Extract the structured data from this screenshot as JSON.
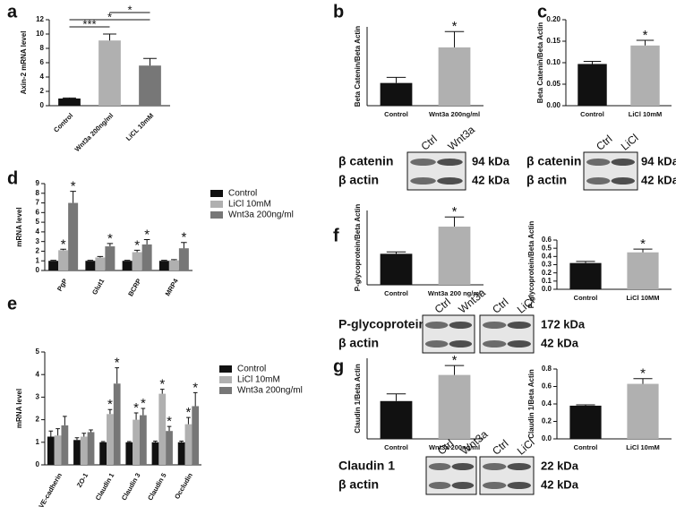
{
  "chart_data": [
    {
      "type": "bar",
      "panel_label": "a",
      "ylabel": "Axin-2 mRNA level",
      "categories": [
        "Control",
        "Wnt3a 200ng/ml",
        "LiCL 10mM"
      ],
      "values": [
        1,
        9.1,
        5.6
      ],
      "errors": [
        0.08,
        0.9,
        1.0
      ],
      "colors": [
        "#111111",
        "#b0b0b0",
        "#777777"
      ],
      "ylim": [
        0,
        12
      ],
      "yticks": [
        0,
        2,
        4,
        6,
        8,
        10,
        12
      ],
      "brackets": [
        {
          "text": "***",
          "from": 0,
          "to": 1
        },
        {
          "text": "*",
          "from": 0,
          "to": 2
        },
        {
          "text": "*",
          "from": 1,
          "to": 2
        }
      ]
    },
    {
      "type": "bar",
      "panel_label": "b",
      "ylabel": "Beta Catenin/Beta Actin",
      "categories": [
        "Control",
        "Wnt3a 200ng/ml"
      ],
      "values": [
        0.72,
        1.85
      ],
      "errors": [
        0.18,
        0.5
      ],
      "colors": [
        "#111111",
        "#b0b0b0"
      ],
      "ylim": [
        0,
        2.5
      ],
      "annotations": [
        {
          "text": "*",
          "index": 1
        }
      ]
    },
    {
      "type": "bar",
      "panel_label": "c",
      "ylabel": "Beta Catenin/Beta Actin",
      "categories": [
        "Control",
        "LiCl 10mM"
      ],
      "values": [
        0.097,
        0.14
      ],
      "errors": [
        0.006,
        0.012
      ],
      "colors": [
        "#111111",
        "#b0b0b0"
      ],
      "ylim": [
        0,
        0.2
      ],
      "yticks": [
        {
          "value": 0,
          "label": "0.00"
        },
        {
          "value": 0.05,
          "label": "0.05"
        },
        {
          "value": 0.1,
          "label": "0.10"
        },
        {
          "value": 0.15,
          "label": "0.15"
        },
        {
          "value": 0.2,
          "label": "0.20"
        }
      ],
      "annotations": [
        {
          "text": "*",
          "index": 1
        }
      ]
    },
    {
      "type": "grouped_bar",
      "panel_label": "d",
      "ylabel": "mRNA level",
      "categories": [
        "PgP",
        "Glut1",
        "BCRP",
        "MRP4"
      ],
      "series": [
        {
          "name": "Control",
          "color": "#111111",
          "values": [
            1,
            1,
            1,
            1
          ],
          "errors": [
            0.05,
            0.05,
            0.05,
            0.05
          ]
        },
        {
          "name": "LiCl 10mM",
          "color": "#b0b0b0",
          "values": [
            2.1,
            1.35,
            1.9,
            1.05
          ],
          "errors": [
            0.1,
            0.1,
            0.2,
            0.08
          ]
        },
        {
          "name": "Wnt3a 200ng/ml",
          "color": "#777777",
          "values": [
            7.0,
            2.5,
            2.7,
            2.3
          ],
          "errors": [
            1.2,
            0.3,
            0.5,
            0.6
          ]
        }
      ],
      "ylim": [
        0,
        9
      ],
      "yticks": [
        0,
        1,
        2,
        3,
        4,
        5,
        6,
        7,
        8,
        9
      ],
      "annotations": [
        {
          "text": "*",
          "series": 1,
          "index": 0
        },
        {
          "text": "*",
          "series": 2,
          "index": 0
        },
        {
          "text": "*",
          "series": 2,
          "index": 1
        },
        {
          "text": "*",
          "series": 1,
          "index": 2
        },
        {
          "text": "*",
          "series": 2,
          "index": 2
        },
        {
          "text": "*",
          "series": 2,
          "index": 3
        }
      ]
    },
    {
      "type": "grouped_bar",
      "panel_label": "e",
      "ylabel": "mRNA level",
      "categories": [
        "VE-cadherin",
        "ZO-1",
        "Claudin 1",
        "Claudin 3",
        "Claudin 5",
        "Occludin"
      ],
      "series": [
        {
          "name": "Control",
          "color": "#111111",
          "values": [
            1.25,
            1.1,
            1.0,
            1.0,
            1.0,
            1.0
          ],
          "errors": [
            0.25,
            0.1,
            0.03,
            0.03,
            0.05,
            0.05
          ]
        },
        {
          "name": "LiCl 10mM",
          "color": "#b0b0b0",
          "values": [
            1.3,
            1.25,
            2.25,
            2.0,
            3.15,
            1.8
          ],
          "errors": [
            0.3,
            0.15,
            0.2,
            0.3,
            0.2,
            0.3
          ]
        },
        {
          "name": "Wnt3a 200ng/ml",
          "color": "#777777",
          "values": [
            1.75,
            1.45,
            3.6,
            2.2,
            1.5,
            2.6
          ],
          "errors": [
            0.4,
            0.1,
            0.7,
            0.3,
            0.2,
            0.6
          ]
        }
      ],
      "ylim": [
        0,
        5
      ],
      "yticks": [
        0,
        1,
        2,
        3,
        4,
        5
      ],
      "annotations": [
        {
          "text": "*",
          "series": 1,
          "index": 2
        },
        {
          "text": "*",
          "series": 2,
          "index": 2
        },
        {
          "text": "*",
          "series": 1,
          "index": 3
        },
        {
          "text": "*",
          "series": 2,
          "index": 3
        },
        {
          "text": "*",
          "series": 1,
          "index": 4
        },
        {
          "text": "*",
          "series": 2,
          "index": 4
        },
        {
          "text": "*",
          "series": 1,
          "index": 5
        },
        {
          "text": "*",
          "series": 2,
          "index": 5
        }
      ]
    },
    {
      "type": "bar",
      "panel_label": "f",
      "ylabel": "P-glycoprotein/Beta Actin",
      "categories": [
        "Control",
        "Wnt3a 200 ng/ml"
      ],
      "values": [
        0.48,
        0.9
      ],
      "errors": [
        0.03,
        0.15
      ],
      "colors": [
        "#111111",
        "#b0b0b0"
      ],
      "ylim": [
        0,
        1.15
      ],
      "annotations": [
        {
          "text": "*",
          "index": 1
        }
      ]
    },
    {
      "type": "bar",
      "ylabel": "P-glycoprotein/Beta Actin",
      "categories": [
        "Control",
        "LiCl 10MM"
      ],
      "values": [
        0.32,
        0.45
      ],
      "errors": [
        0.02,
        0.04
      ],
      "colors": [
        "#111111",
        "#b0b0b0"
      ],
      "ylim": [
        0,
        0.6
      ],
      "yticks": [
        {
          "value": 0,
          "label": "0.0"
        },
        {
          "value": 0.1,
          "label": "0.1"
        },
        {
          "value": 0.2,
          "label": "0.2"
        },
        {
          "value": 0.3,
          "label": "0.3"
        },
        {
          "value": 0.4,
          "label": "0.4"
        },
        {
          "value": 0.5,
          "label": "0.5"
        },
        {
          "value": 0.6,
          "label": "0.6"
        }
      ],
      "annotations": [
        {
          "text": "*",
          "index": 1
        }
      ]
    },
    {
      "type": "bar",
      "panel_label": "g",
      "ylabel": "Claudin 1/Beta Actin",
      "categories": [
        "Control",
        "Wnt3a 200ng/ml"
      ],
      "values": [
        0.68,
        1.15
      ],
      "errors": [
        0.13,
        0.17
      ],
      "colors": [
        "#111111",
        "#b0b0b0"
      ],
      "ylim": [
        0,
        1.45
      ],
      "annotations": [
        {
          "text": "*",
          "index": 1
        }
      ]
    },
    {
      "type": "bar",
      "ylabel": "Claudin 1/Beta Actin",
      "categories": [
        "Control",
        "LiCl 10mM"
      ],
      "values": [
        0.38,
        0.63
      ],
      "errors": [
        0.01,
        0.06
      ],
      "colors": [
        "#111111",
        "#b0b0b0"
      ],
      "ylim": [
        0,
        0.8
      ],
      "yticks": [
        {
          "value": 0,
          "label": "0.0"
        },
        {
          "value": 0.2,
          "label": "0.2"
        },
        {
          "value": 0.4,
          "label": "0.4"
        },
        {
          "value": 0.6,
          "label": "0.6"
        },
        {
          "value": 0.8,
          "label": "0.8"
        }
      ],
      "annotations": [
        {
          "text": "*",
          "index": 1
        }
      ]
    }
  ],
  "blots": [
    {
      "lanes": [
        "Ctrl",
        "Wnt3a"
      ],
      "rows": [
        "β catenin",
        "β actin"
      ],
      "sizes": [
        "94 kDa",
        "42 kDa"
      ]
    },
    {
      "lanes": [
        "Ctrl",
        "LiCl"
      ],
      "rows": [
        "β catenin",
        "β actin"
      ],
      "sizes": [
        "94 kDa",
        "42 kDa"
      ]
    },
    {
      "lanes": [
        "Ctrl",
        "Wnt3a",
        "Ctrl",
        "LiCl"
      ],
      "rows": [
        "P-glycoprotein",
        "β actin"
      ],
      "sizes": [
        "172 kDa",
        "42 kDa"
      ]
    },
    {
      "lanes": [
        "Ctrl",
        "Wnt3a",
        "Ctrl",
        "LiCl"
      ],
      "rows": [
        "Claudin 1",
        "β actin"
      ],
      "sizes": [
        "22 kDa",
        "42 kDa"
      ]
    }
  ]
}
